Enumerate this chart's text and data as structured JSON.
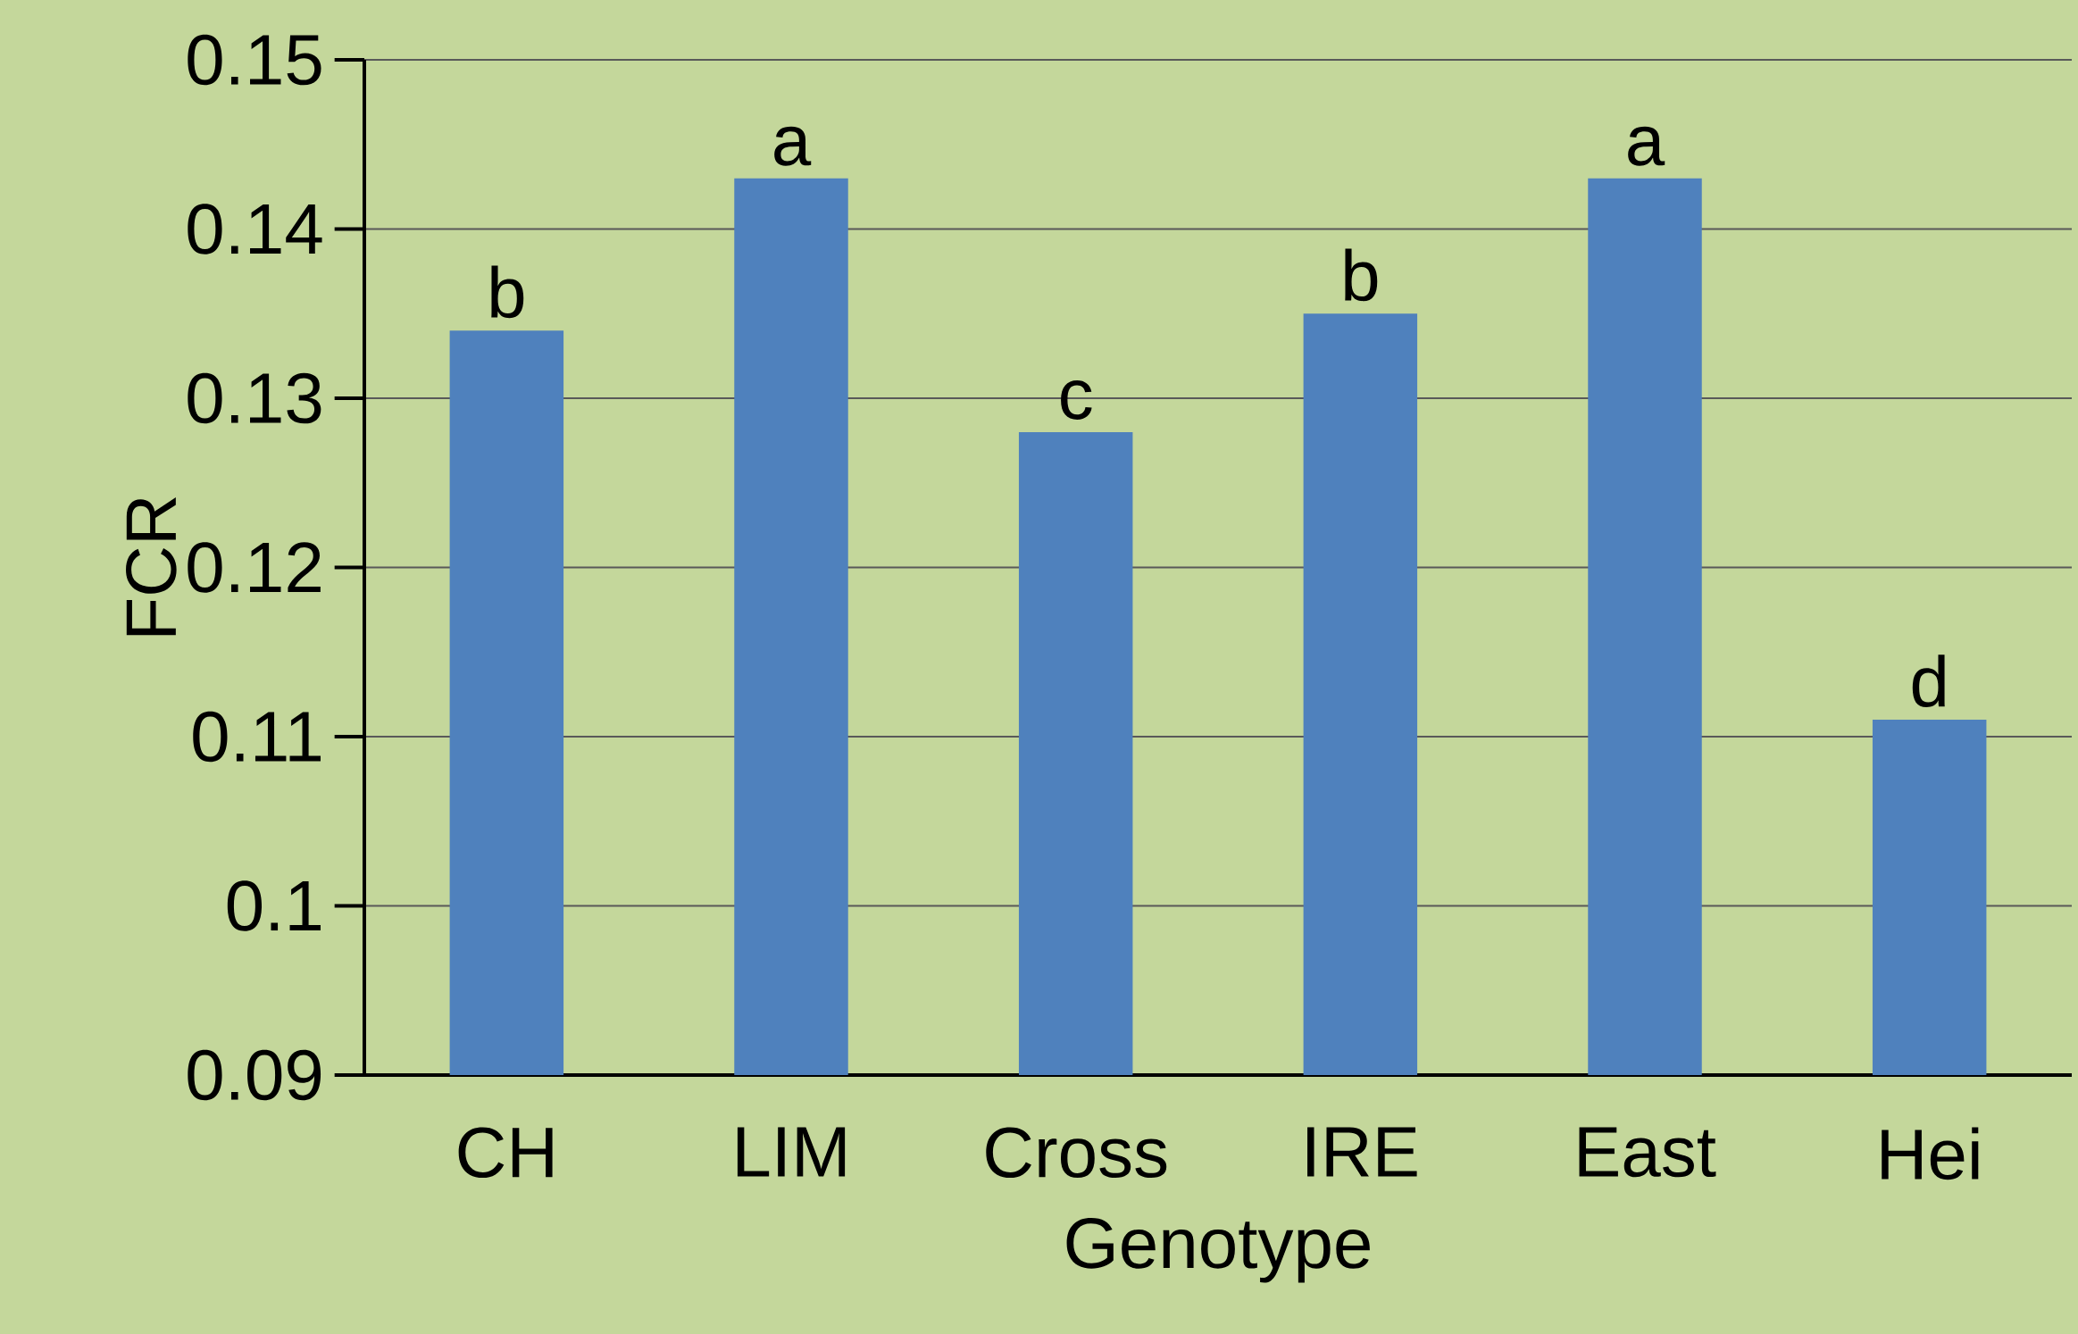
{
  "chart_data": {
    "type": "bar",
    "xlabel": "Genotype",
    "ylabel": "FCR",
    "categories": [
      "CH",
      "LIM",
      "Cross",
      "IRE",
      "East",
      "Hei"
    ],
    "values": [
      0.134,
      0.143,
      0.128,
      0.135,
      0.143,
      0.111
    ],
    "value_labels": [
      "b",
      "a",
      "c",
      "b",
      "a",
      "d"
    ],
    "color": "#4f81bd",
    "ylim": [
      0.09,
      0.15
    ],
    "yticks": [
      0.09,
      0.1,
      0.11,
      0.12,
      0.13,
      0.14,
      0.15
    ],
    "grid": "y"
  }
}
